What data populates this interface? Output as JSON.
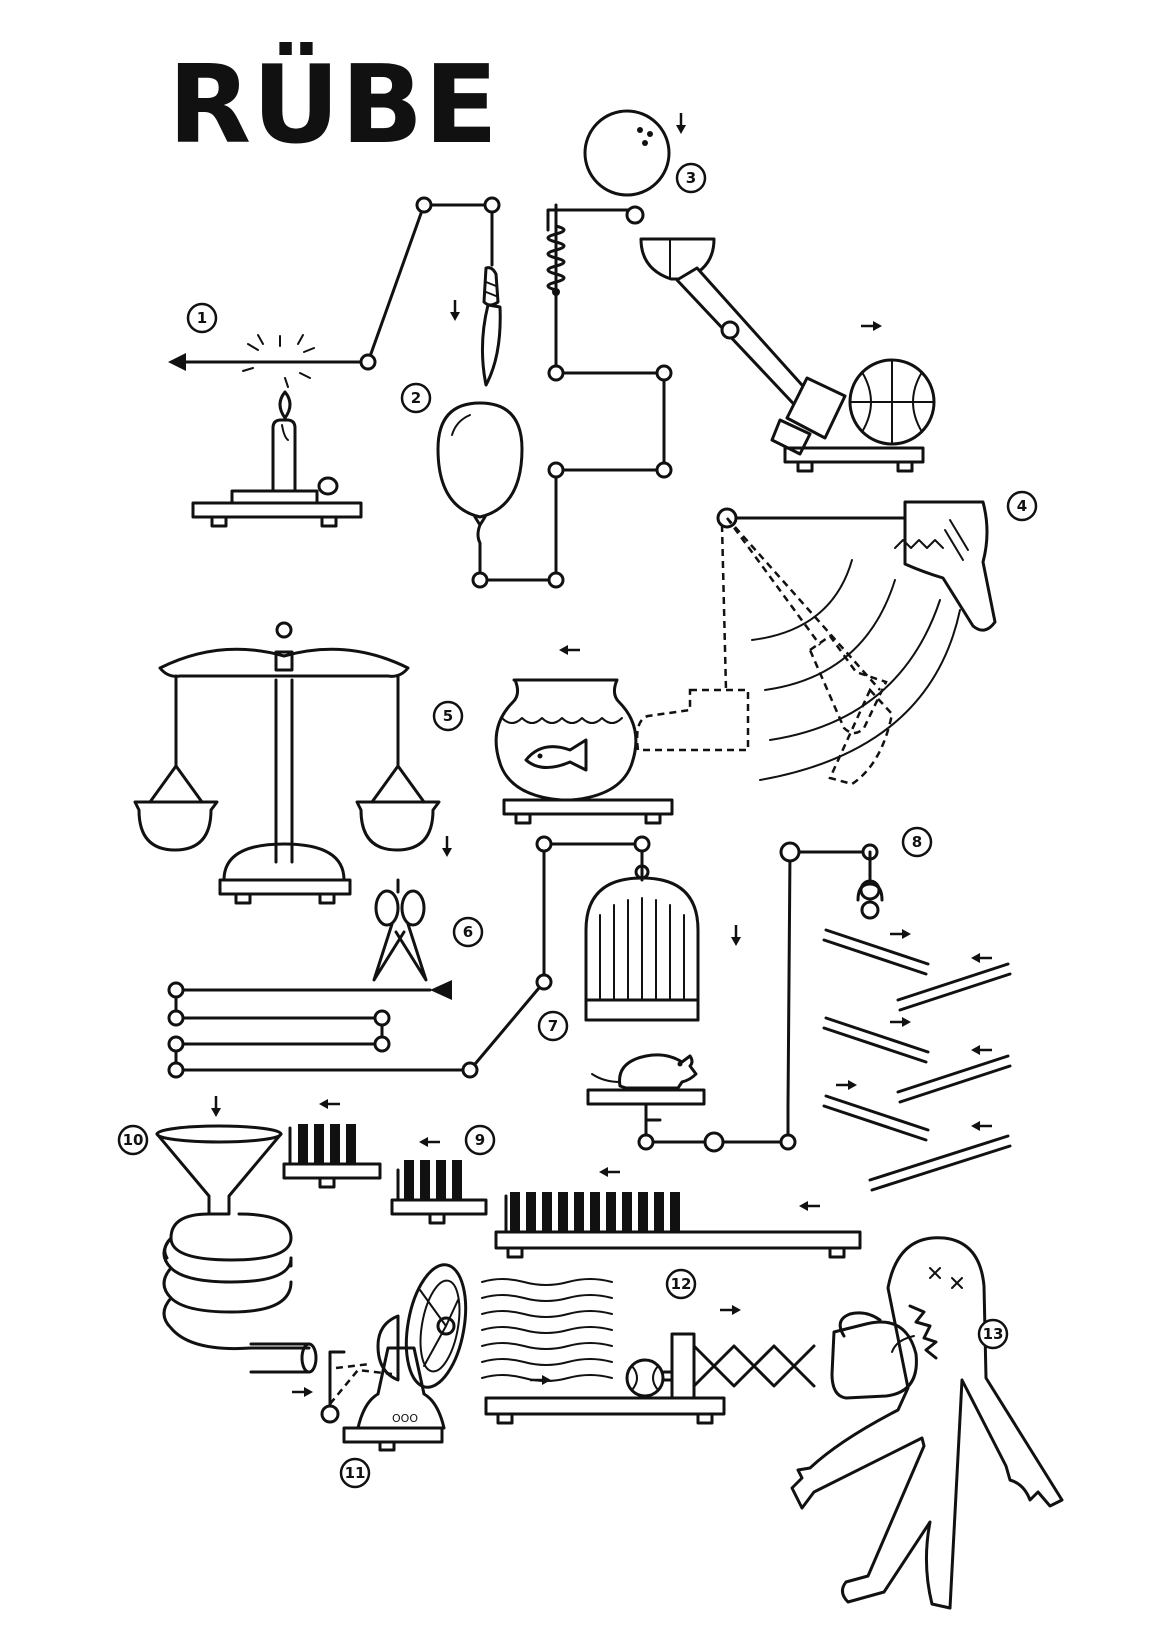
{
  "title": "RÜBE",
  "steps": [
    {
      "number": "1"
    },
    {
      "number": "2"
    },
    {
      "number": "3"
    },
    {
      "number": "4"
    },
    {
      "number": "5"
    },
    {
      "number": "6"
    },
    {
      "number": "7"
    },
    {
      "number": "8"
    },
    {
      "number": "9"
    },
    {
      "number": "10"
    },
    {
      "number": "11"
    },
    {
      "number": "12"
    },
    {
      "number": "13"
    }
  ],
  "colors": {
    "ink": "#111111",
    "paper": "#ffffff"
  },
  "icons": [
    "candle-icon",
    "knife-icon",
    "balloon-icon",
    "bowling-ball-icon",
    "spring-icon",
    "scoop-icon",
    "hammer-icon",
    "basketball-icon",
    "boot-icon",
    "fishbowl-icon",
    "fish-icon",
    "balance-scale-icon",
    "scissors-icon",
    "birdcage-icon",
    "mouse-icon",
    "dominoes-icon",
    "funnel-icon",
    "coiled-hose-icon",
    "desk-fan-icon",
    "tennis-ball-icon",
    "extending-boxing-glove-icon",
    "figure-icon",
    "arrow-icon"
  ]
}
